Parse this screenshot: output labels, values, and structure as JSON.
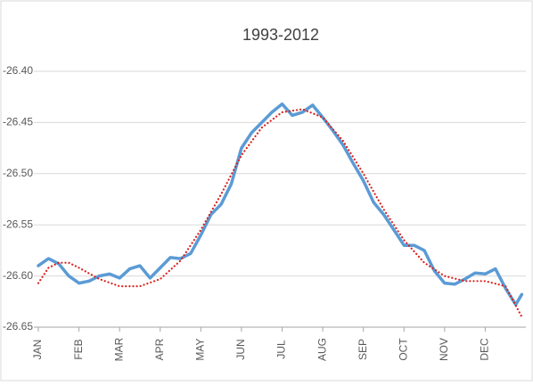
{
  "chart_data": {
    "type": "line",
    "title": "1993-2012",
    "xlim": [
      0,
      12
    ],
    "xticks": [
      {
        "value": 0,
        "label": "JAN"
      },
      {
        "value": 1,
        "label": "FEB"
      },
      {
        "value": 2,
        "label": "MAR"
      },
      {
        "value": 3,
        "label": "APR"
      },
      {
        "value": 4,
        "label": "MAY"
      },
      {
        "value": 5,
        "label": "JUN"
      },
      {
        "value": 6,
        "label": "JUL"
      },
      {
        "value": 7,
        "label": "AUG"
      },
      {
        "value": 8,
        "label": "SEP"
      },
      {
        "value": 9,
        "label": "OCT"
      },
      {
        "value": 10,
        "label": "NOV"
      },
      {
        "value": 11,
        "label": "DEC"
      }
    ],
    "ylim": [
      -26.65,
      -26.4
    ],
    "yticks": [
      {
        "value": -26.4,
        "label": "-26.40"
      },
      -26.45,
      {
        "value": -26.5,
        "label": "-26.50"
      },
      -26.55,
      {
        "value": -26.6,
        "label": "-26.60"
      },
      -26.65
    ],
    "grid": true,
    "series": [
      {
        "color": "#5b9bd5",
        "style": "solid",
        "x": [
          0,
          0.25,
          0.5,
          0.75,
          1,
          1.25,
          1.5,
          1.75,
          2,
          2.25,
          2.5,
          2.75,
          3,
          3.25,
          3.5,
          3.75,
          4,
          4.25,
          4.5,
          4.75,
          5,
          5.25,
          5.5,
          5.75,
          6,
          6.25,
          6.5,
          6.75,
          7,
          7.25,
          7.5,
          7.75,
          8,
          8.25,
          8.5,
          8.75,
          9,
          9.25,
          9.5,
          9.75,
          10,
          10.25,
          10.5,
          10.75,
          11,
          11.25,
          11.5,
          11.75,
          11.9
        ],
        "values": [
          -26.59,
          -26.583,
          -26.588,
          -26.6,
          -26.607,
          -26.605,
          -26.6,
          -26.598,
          -26.602,
          -26.593,
          -26.59,
          -26.602,
          -26.592,
          -26.582,
          -26.583,
          -26.578,
          -26.56,
          -26.54,
          -26.53,
          -26.51,
          -26.475,
          -26.46,
          -26.45,
          -26.44,
          -26.432,
          -26.443,
          -26.44,
          -26.433,
          -26.445,
          -26.458,
          -26.472,
          -26.49,
          -26.507,
          -26.528,
          -26.54,
          -26.555,
          -26.57,
          -26.57,
          -26.575,
          -26.595,
          -26.607,
          -26.608,
          -26.603,
          -26.597,
          -26.598,
          -26.593,
          -26.612,
          -26.628,
          -26.618
        ]
      },
      {
        "color": "#d9231f",
        "style": "dotted",
        "x": [
          0,
          0.25,
          0.5,
          0.75,
          1,
          1.5,
          2,
          2.5,
          3,
          3.5,
          4,
          4.5,
          5,
          5.5,
          6,
          6.5,
          7,
          7.5,
          8,
          8.5,
          9,
          9.5,
          10,
          10.5,
          11,
          11.5,
          11.9
        ],
        "values": [
          -26.607,
          -26.592,
          -26.587,
          -26.587,
          -26.592,
          -26.603,
          -26.61,
          -26.61,
          -26.603,
          -26.585,
          -26.555,
          -26.52,
          -26.482,
          -26.455,
          -26.44,
          -26.437,
          -26.445,
          -26.468,
          -26.5,
          -26.535,
          -26.565,
          -26.587,
          -26.6,
          -26.605,
          -26.605,
          -26.61,
          -26.64
        ]
      }
    ]
  }
}
